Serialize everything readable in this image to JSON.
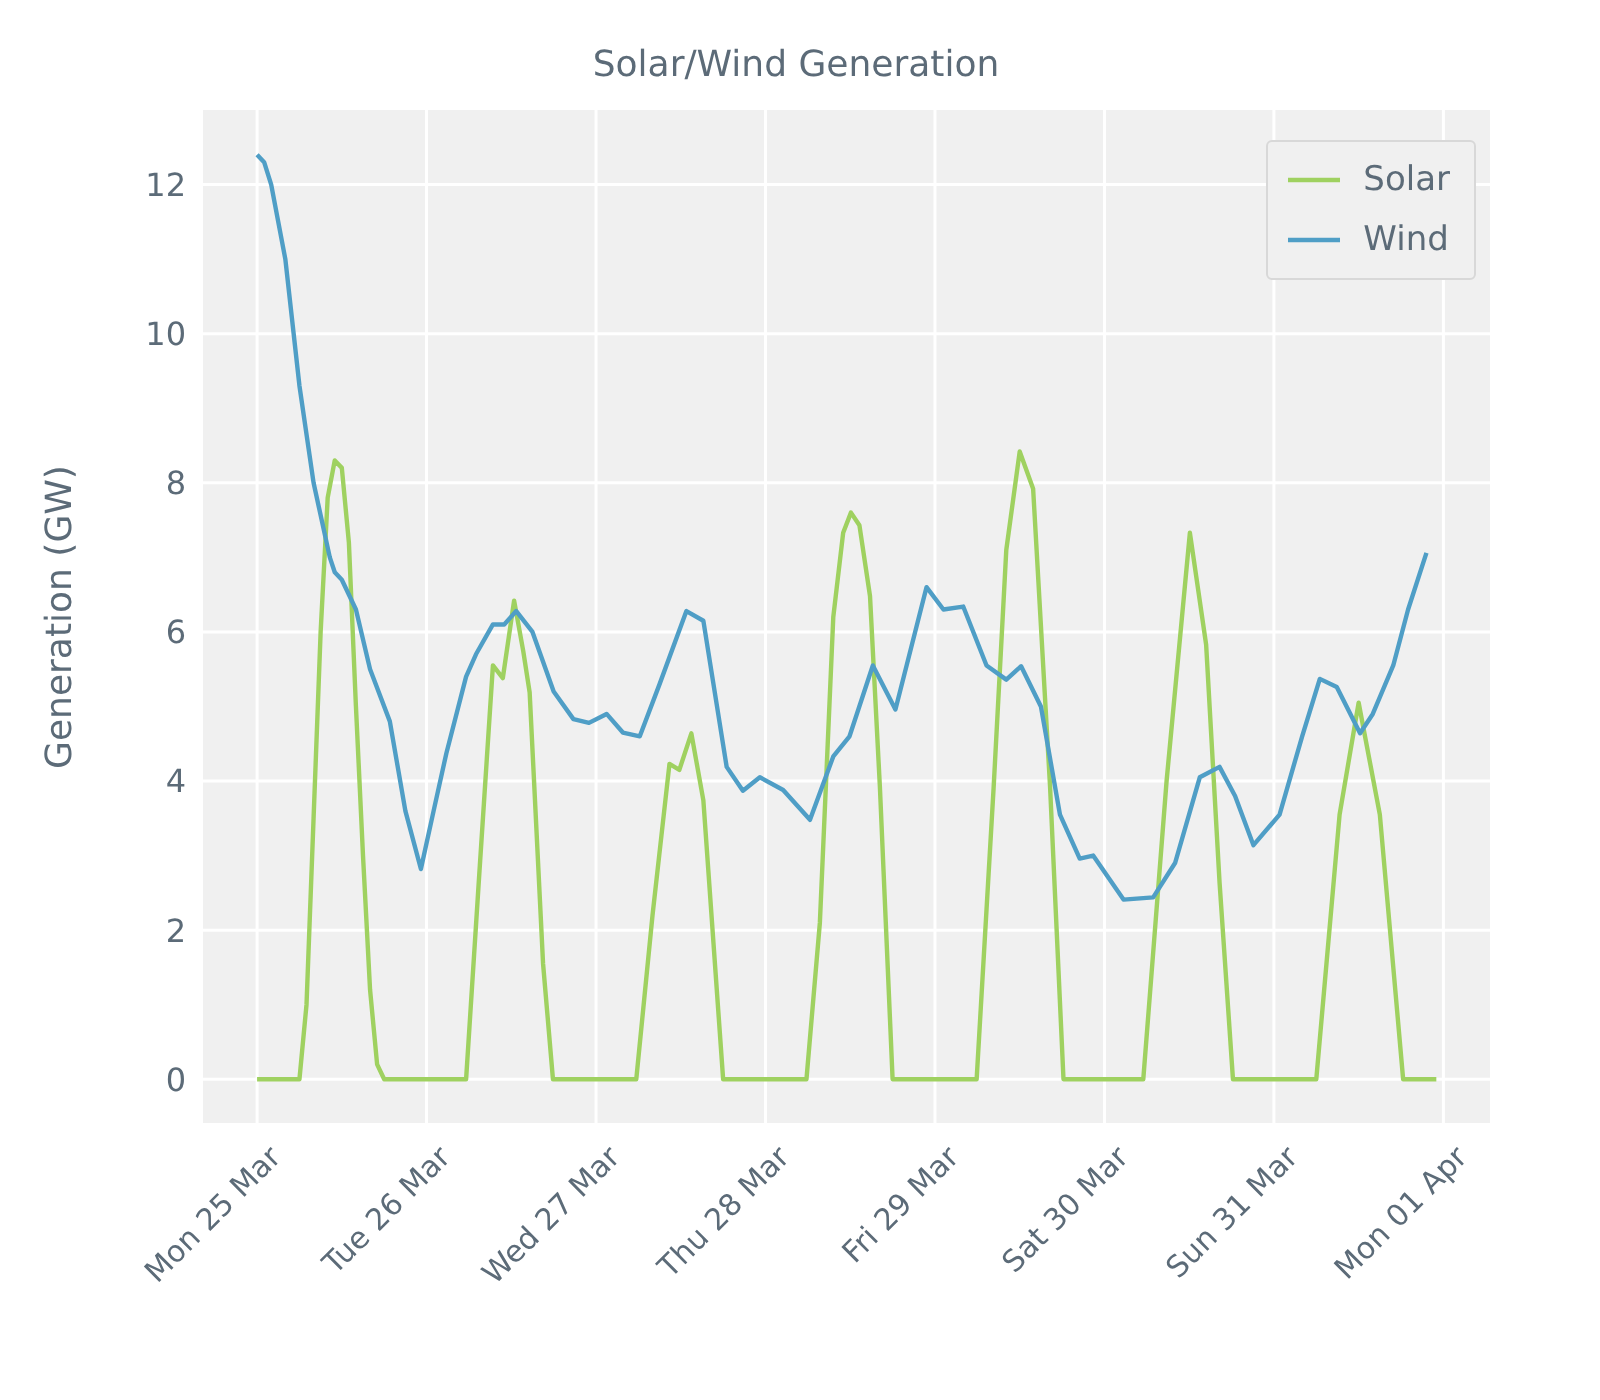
{
  "chart_data": {
    "type": "line",
    "title": "Solar/Wind Generation",
    "ylabel": "Generation (GW)",
    "xlim": [
      "--03-24T16:12",
      "--04-01T06:36"
    ],
    "ylim": [
      -0.6,
      13
    ],
    "xticks": [
      {
        "value": "--03-25",
        "label": "Mon 25 Mar"
      },
      {
        "value": "--03-26",
        "label": "Tue 26 Mar"
      },
      {
        "value": "--03-27",
        "label": "Wed 27 Mar"
      },
      {
        "value": "--03-28",
        "label": "Thu 28 Mar"
      },
      {
        "value": "--03-29",
        "label": "Fri 29 Mar"
      },
      {
        "value": "--03-30",
        "label": "Sat 30 Mar"
      },
      {
        "value": "--03-31",
        "label": "Sun 31 Mar"
      },
      {
        "value": "--04-01",
        "label": "Mon 01 Apr"
      }
    ],
    "yticks": [
      0,
      2,
      4,
      6,
      8,
      10,
      12
    ],
    "grid": true,
    "legend": "top right",
    "marker": "none",
    "line_style": "solid",
    "series": [
      {
        "name": "Solar",
        "color": "#9fd160",
        "x": [
          "--03-25T00:00",
          "--03-25T06:00",
          "--03-25T07:00",
          "--03-25T08:00",
          "--03-25T09:00",
          "--03-25T10:00",
          "--03-25T11:00",
          "--03-25T12:00",
          "--03-25T13:00",
          "--03-25T14:00",
          "--03-25T15:00",
          "--03-25T16:00",
          "--03-25T17:00",
          "--03-25T18:00",
          "--03-26T05:36",
          "--03-26T07:30",
          "--03-26T09:24",
          "--03-26T10:48",
          "--03-26T12:24",
          "--03-26T13:42",
          "--03-26T14:36",
          "--03-26T16:30",
          "--03-26T17:54",
          "--03-27T05:42",
          "--03-27T08:00",
          "--03-27T10:24",
          "--03-27T11:48",
          "--03-27T13:30",
          "--03-27T15:12",
          "--03-27T18:00",
          "--03-28T05:48",
          "--03-28T07:42",
          "--03-28T09:36",
          "--03-28T11:00",
          "--03-28T12:06",
          "--03-28T13:18",
          "--03-28T14:48",
          "--03-28T16:12",
          "--03-28T18:00",
          "--03-29T05:54",
          "--03-29T08:18",
          "--03-29T10:06",
          "--03-29T12:00",
          "--03-29T13:54",
          "--03-29T16:18",
          "--03-29T18:12",
          "--03-30T05:30",
          "--03-30T08:48",
          "--03-30T12:06",
          "--03-30T14:24",
          "--03-30T16:18",
          "--03-30T18:12",
          "--03-31T06:00",
          "--03-31T09:18",
          "--03-31T12:00",
          "--03-31T15:00",
          "--03-31T18:18",
          "--03-31T23:00"
        ],
        "values": [
          0,
          0,
          1,
          3.5,
          6,
          7.8,
          8.3,
          8.2,
          7.2,
          5,
          3,
          1.2,
          0.2,
          0,
          0,
          2.8,
          5.55,
          5.38,
          6.42,
          5.74,
          5.19,
          1.55,
          0,
          0,
          2.2,
          4.23,
          4.15,
          4.64,
          3.74,
          0,
          0,
          2.1,
          6.2,
          7.33,
          7.6,
          7.43,
          6.48,
          3.92,
          0,
          0,
          3.9,
          7.1,
          8.42,
          7.92,
          3.92,
          0,
          0,
          4.0,
          7.33,
          5.83,
          2.64,
          0,
          0,
          3.55,
          5.05,
          3.55,
          0,
          0
        ]
      },
      {
        "name": "Wind",
        "color": "#4f9ec6",
        "x": [
          "--03-25T00:00",
          "--03-25T01:00",
          "--03-25T02:00",
          "--03-25T04:00",
          "--03-25T06:00",
          "--03-25T08:00",
          "--03-25T10:18",
          "--03-25T11:00",
          "--03-25T12:00",
          "--03-25T14:00",
          "--03-25T16:00",
          "--03-25T18:48",
          "--03-25T21:00",
          "--03-25T23:12",
          "--03-26T01:00",
          "--03-26T02:48",
          "--03-26T05:36",
          "--03-26T07:00",
          "--03-26T09:24",
          "--03-26T11:00",
          "--03-26T12:42",
          "--03-26T15:00",
          "--03-26T18:00",
          "--03-26T20:48",
          "--03-26T23:00",
          "--03-27T01:30",
          "--03-27T03:48",
          "--03-27T06:12",
          "--03-27T09:00",
          "--03-27T12:48",
          "--03-27T15:12",
          "--03-27T18:30",
          "--03-27T20:48",
          "--03-27T23:12",
          "--03-28T02:30",
          "--03-28T06:18",
          "--03-28T09:36",
          "--03-28T11:54",
          "--03-28T15:12",
          "--03-28T18:24",
          "--03-28T22:48",
          "--03-29T01:12",
          "--03-29T04:00",
          "--03-29T07:18",
          "--03-29T10:06",
          "--03-29T12:12",
          "--03-29T15:00",
          "--03-29T17:42",
          "--03-29T20:30",
          "--03-29T22:24",
          "--03-30T02:42",
          "--03-30T06:54",
          "--03-30T10:00",
          "--03-30T13:30",
          "--03-30T16:18",
          "--03-30T18:30",
          "--03-30T21:06",
          "--03-31T00:48",
          "--03-31T04:00",
          "--03-31T06:30",
          "--03-31T08:54",
          "--03-31T12:12",
          "--03-31T14:00",
          "--03-31T16:54",
          "--03-31T19:00",
          "--03-31T21:36"
        ],
        "values": [
          12.4,
          12.3,
          12.0,
          11.0,
          9.3,
          8.0,
          7.0,
          6.8,
          6.7,
          6.3,
          5.5,
          4.8,
          3.6,
          2.82,
          3.6,
          4.37,
          5.4,
          5.7,
          6.1,
          6.1,
          6.28,
          6.0,
          5.2,
          4.83,
          4.78,
          4.9,
          4.65,
          4.6,
          5.3,
          6.28,
          6.15,
          4.19,
          3.87,
          4.05,
          3.88,
          3.48,
          4.33,
          4.6,
          5.55,
          4.96,
          6.6,
          6.3,
          6.34,
          5.55,
          5.36,
          5.54,
          5.0,
          3.55,
          2.96,
          3.0,
          2.41,
          2.44,
          2.9,
          4.05,
          4.19,
          3.8,
          3.14,
          3.55,
          4.6,
          5.37,
          5.26,
          4.64,
          4.9,
          5.55,
          6.3,
          7.06
        ]
      }
    ]
  }
}
